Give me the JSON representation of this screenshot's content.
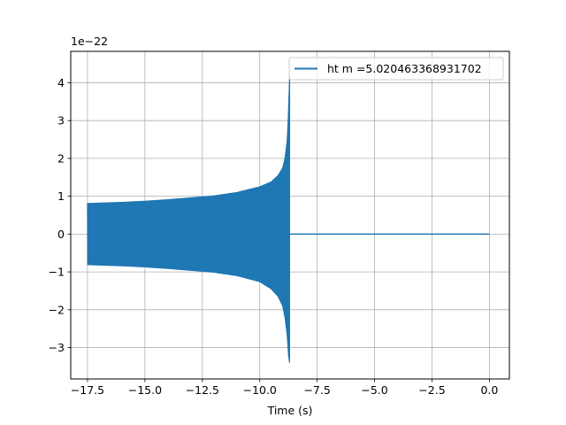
{
  "chart_data": {
    "type": "line",
    "title": "",
    "xlabel": "Time (s)",
    "ylabel": "",
    "y_scale_label": "1e−22",
    "y_scale_factor": 1e-22,
    "xlim": [
      -18.23,
      0.87
    ],
    "ylim": [
      -3.83,
      4.83
    ],
    "x_ticks": [
      -17.5,
      -15.0,
      -12.5,
      -10.0,
      -7.5,
      -5.0,
      -2.5,
      0.0
    ],
    "x_tick_labels": [
      "−17.5",
      "−15.0",
      "−12.5",
      "−10.0",
      "−7.5",
      "−5.0",
      "−2.5",
      "0.0"
    ],
    "y_ticks": [
      -3,
      -2,
      -1,
      0,
      1,
      2,
      3,
      4
    ],
    "y_tick_labels": [
      "−3",
      "−2",
      "−1",
      "0",
      "1",
      "2",
      "3",
      "4"
    ],
    "grid": true,
    "legend_position": "top-right",
    "series": [
      {
        "name": "ht m =5.020463368931702",
        "color": "#1f77b4",
        "t_start": -17.5,
        "t_merger": -8.7,
        "t_end": 0.0,
        "envelope_time": [
          -17.5,
          -16.0,
          -15.0,
          -14.0,
          -13.0,
          -12.0,
          -11.0,
          -10.0,
          -9.5,
          -9.2,
          -9.0,
          -8.9,
          -8.8,
          -8.75,
          -8.7
        ],
        "envelope_upper": [
          0.81,
          0.84,
          0.87,
          0.91,
          0.96,
          1.01,
          1.1,
          1.25,
          1.38,
          1.55,
          1.75,
          2.0,
          2.5,
          3.2,
          4.2
        ],
        "envelope_lower": [
          -0.81,
          -0.84,
          -0.87,
          -0.91,
          -0.96,
          -1.01,
          -1.1,
          -1.26,
          -1.45,
          -1.65,
          -1.9,
          -2.2,
          -2.7,
          -3.2,
          -3.4
        ],
        "post_merger_value": 0.0
      }
    ]
  }
}
